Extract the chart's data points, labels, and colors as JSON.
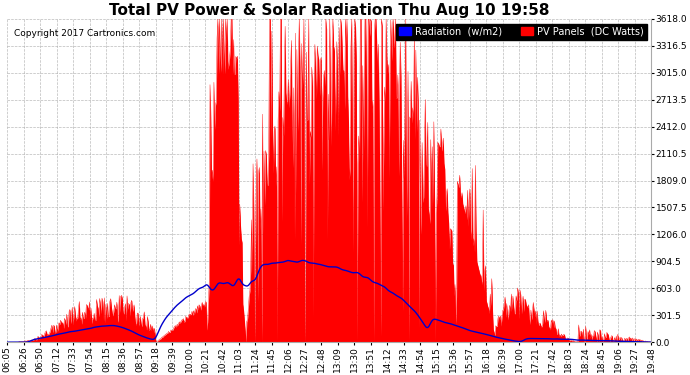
{
  "title": "Total PV Power & Solar Radiation Thu Aug 10 19:58",
  "copyright": "Copyright 2017 Cartronics.com",
  "legend_radiation": "Radiation  (w/m2)",
  "legend_pv": "PV Panels  (DC Watts)",
  "yticks": [
    0.0,
    301.5,
    603.0,
    904.5,
    1206.0,
    1507.5,
    1809.0,
    2110.5,
    2412.0,
    2713.5,
    3015.0,
    3316.5,
    3618.0
  ],
  "ymax": 3618.0,
  "bg_color": "#ffffff",
  "grid_color": "#aaaaaa",
  "red_color": "#ff0000",
  "blue_color": "#0000cc",
  "title_fontsize": 11,
  "tick_fontsize": 6.5,
  "legend_fontsize": 7,
  "xtick_labels": [
    "06:05",
    "06:26",
    "06:50",
    "07:12",
    "07:33",
    "07:54",
    "08:15",
    "08:36",
    "08:57",
    "09:18",
    "09:39",
    "10:00",
    "10:21",
    "10:42",
    "11:03",
    "11:24",
    "11:45",
    "12:06",
    "12:27",
    "12:48",
    "13:09",
    "13:30",
    "13:51",
    "14:12",
    "14:33",
    "14:54",
    "15:15",
    "15:36",
    "15:57",
    "16:18",
    "16:39",
    "17:00",
    "17:21",
    "17:42",
    "18:03",
    "18:24",
    "18:45",
    "19:06",
    "19:27",
    "19:48"
  ]
}
